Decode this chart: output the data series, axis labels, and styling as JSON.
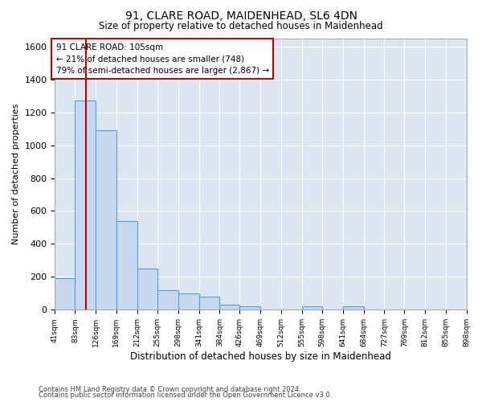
{
  "title1": "91, CLARE ROAD, MAIDENHEAD, SL6 4DN",
  "title2": "Size of property relative to detached houses in Maidenhead",
  "xlabel": "Distribution of detached houses by size in Maidenhead",
  "ylabel": "Number of detached properties",
  "annotation_line1": "91 CLARE ROAD: 105sqm",
  "annotation_line2": "← 21% of detached houses are smaller (748)",
  "annotation_line3": "79% of semi-detached houses are larger (2,867) →",
  "property_size_sqm": 105,
  "bin_edges": [
    41,
    83,
    126,
    169,
    212,
    255,
    298,
    341,
    384,
    426,
    469,
    512,
    555,
    598,
    641,
    684,
    727,
    769,
    812,
    855,
    898
  ],
  "bar_heights": [
    190,
    1270,
    1090,
    540,
    250,
    120,
    100,
    80,
    30,
    20,
    0,
    0,
    20,
    0,
    20,
    0,
    0,
    0,
    0,
    0
  ],
  "bar_color": "#c6d9f1",
  "bar_edge_color": "#5b9bd5",
  "property_line_color": "#c00000",
  "annotation_box_color": "#c00000",
  "background_color": "#dce6f1",
  "ylim": [
    0,
    1650
  ],
  "yticks": [
    0,
    200,
    400,
    600,
    800,
    1000,
    1200,
    1400,
    1600
  ],
  "footer1": "Contains HM Land Registry data © Crown copyright and database right 2024.",
  "footer2": "Contains public sector information licensed under the Open Government Licence v3.0."
}
